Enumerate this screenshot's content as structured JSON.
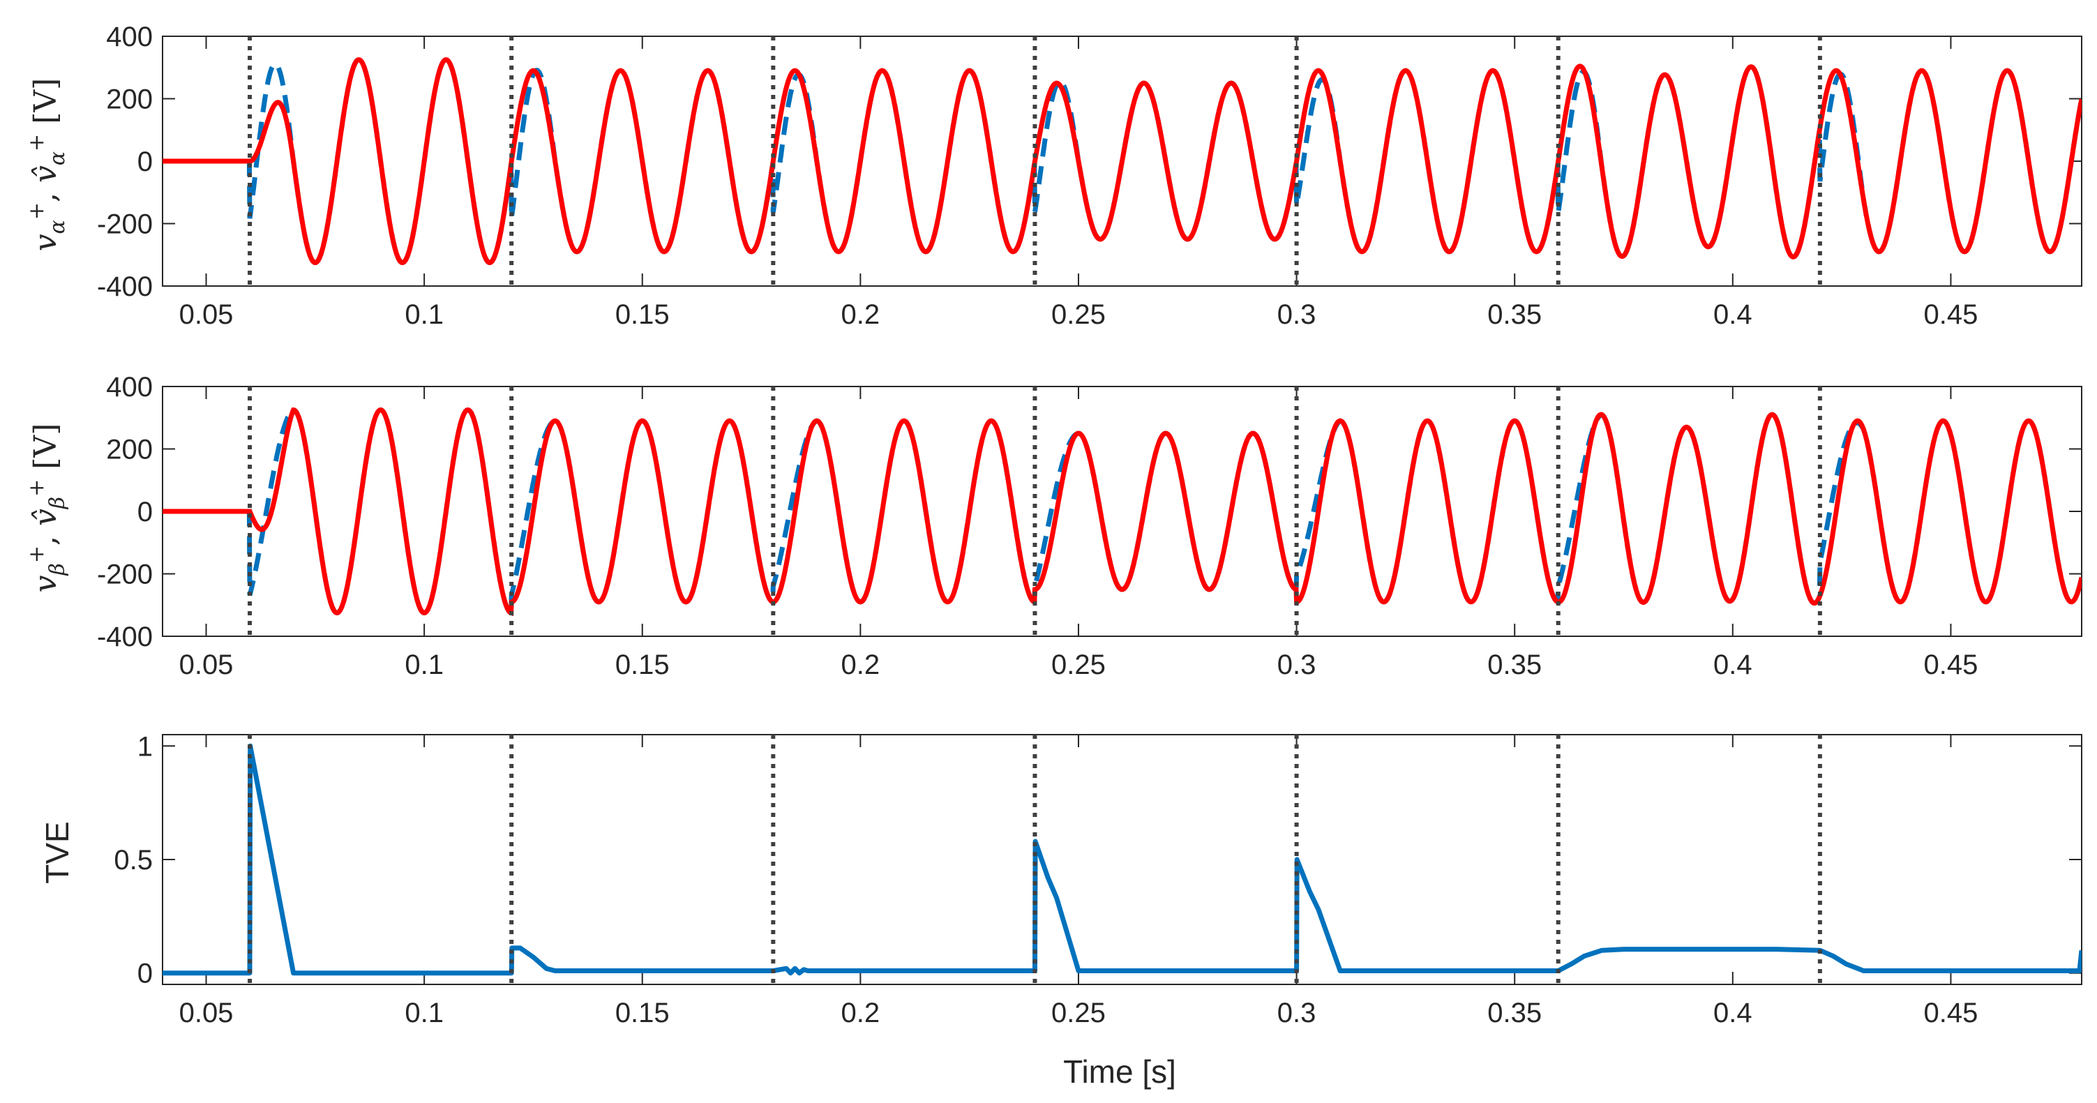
{
  "chart_data": [
    {
      "type": "line",
      "ylabel": "v_α^+, v̂_α^+ [V]",
      "xlim": [
        0.04,
        0.48
      ],
      "ylim": [
        -400,
        400
      ],
      "xticks": [
        0.05,
        0.1,
        0.15,
        0.2,
        0.25,
        0.3,
        0.35,
        0.4,
        0.45
      ],
      "xtick_labels": [
        "0.05",
        "0.1",
        "0.15",
        "0.2",
        "0.25",
        "0.3",
        "0.35",
        "0.4",
        "0.45"
      ],
      "yticks": [
        -400,
        -200,
        0,
        200,
        400
      ],
      "ytick_labels": [
        "-400",
        "-200",
        "0",
        "200",
        "400"
      ],
      "event_lines_x": [
        0.06,
        0.12,
        0.18,
        0.24,
        0.3,
        0.36,
        0.42
      ],
      "signal": {
        "frequency_hz": [
          50,
          50,
          50,
          50,
          50,
          51,
          51
        ],
        "segments": [
          {
            "from": 0.04,
            "to": 0.06,
            "amplitude": 0
          },
          {
            "from": 0.06,
            "to": 0.12,
            "amplitude": 325
          },
          {
            "from": 0.12,
            "to": 0.18,
            "amplitude": 290
          },
          {
            "from": 0.18,
            "to": 0.24,
            "amplitude": 290
          },
          {
            "from": 0.24,
            "to": 0.3,
            "amplitude": 250
          },
          {
            "from": 0.3,
            "to": 0.36,
            "amplitude": 290
          },
          {
            "from": 0.36,
            "to": 0.42,
            "amplitude": 290
          },
          {
            "from": 0.42,
            "to": 0.48,
            "amplitude": 290
          }
        ]
      },
      "series": [
        {
          "color": "#0072BD",
          "style": "dashed"
        },
        {
          "color": "#FF0000",
          "style": "solid"
        }
      ]
    },
    {
      "type": "line",
      "ylabel": "v_β^+, v̂_β^+ [V]",
      "xlim": [
        0.04,
        0.48
      ],
      "ylim": [
        -400,
        400
      ],
      "xticks": [
        0.05,
        0.1,
        0.15,
        0.2,
        0.25,
        0.3,
        0.35,
        0.4,
        0.45
      ],
      "xtick_labels": [
        "0.05",
        "0.1",
        "0.15",
        "0.2",
        "0.25",
        "0.3",
        "0.35",
        "0.4",
        "0.45"
      ],
      "yticks": [
        -400,
        -200,
        0,
        200,
        400
      ],
      "ytick_labels": [
        "-400",
        "-200",
        "0",
        "200",
        "400"
      ],
      "event_lines_x": [
        0.06,
        0.12,
        0.18,
        0.24,
        0.3,
        0.36,
        0.42
      ],
      "series": [
        {
          "color": "#0072BD",
          "style": "dashed"
        },
        {
          "color": "#FF0000",
          "style": "solid"
        }
      ]
    },
    {
      "type": "line",
      "ylabel": "TVE",
      "xlabel": "Time [s]",
      "xlim": [
        0.04,
        0.48
      ],
      "ylim": [
        -0.05,
        1.05
      ],
      "xticks": [
        0.05,
        0.1,
        0.15,
        0.2,
        0.25,
        0.3,
        0.35,
        0.4,
        0.45
      ],
      "xtick_labels": [
        "0.05",
        "0.1",
        "0.15",
        "0.2",
        "0.25",
        "0.3",
        "0.35",
        "0.4",
        "0.45"
      ],
      "yticks": [
        0,
        0.5,
        1
      ],
      "ytick_labels": [
        "0",
        "0.5",
        "1"
      ],
      "event_lines_x": [
        0.06,
        0.12,
        0.18,
        0.24,
        0.3,
        0.36,
        0.42
      ],
      "series": [
        {
          "color": "#0072BD",
          "style": "solid",
          "x": [
            0.04,
            0.06,
            0.0601,
            0.07,
            0.12,
            0.1201,
            0.122,
            0.125,
            0.128,
            0.13,
            0.18,
            0.183,
            0.184,
            0.185,
            0.186,
            0.187,
            0.188,
            0.24,
            0.2401,
            0.243,
            0.245,
            0.25,
            0.3,
            0.3001,
            0.303,
            0.305,
            0.31,
            0.36,
            0.363,
            0.366,
            0.37,
            0.375,
            0.39,
            0.41,
            0.42,
            0.423,
            0.426,
            0.43,
            0.4795,
            0.48
          ],
          "y": [
            0,
            0,
            1.0,
            0,
            0,
            0.11,
            0.11,
            0.07,
            0.02,
            0.01,
            0.01,
            0.02,
            0.0,
            0.02,
            0.0,
            0.015,
            0.01,
            0.01,
            0.58,
            0.42,
            0.33,
            0.01,
            0.01,
            0.5,
            0.36,
            0.28,
            0.01,
            0.01,
            0.04,
            0.075,
            0.1,
            0.105,
            0.105,
            0.105,
            0.1,
            0.075,
            0.04,
            0.01,
            0.01,
            0.1
          ]
        }
      ]
    }
  ]
}
